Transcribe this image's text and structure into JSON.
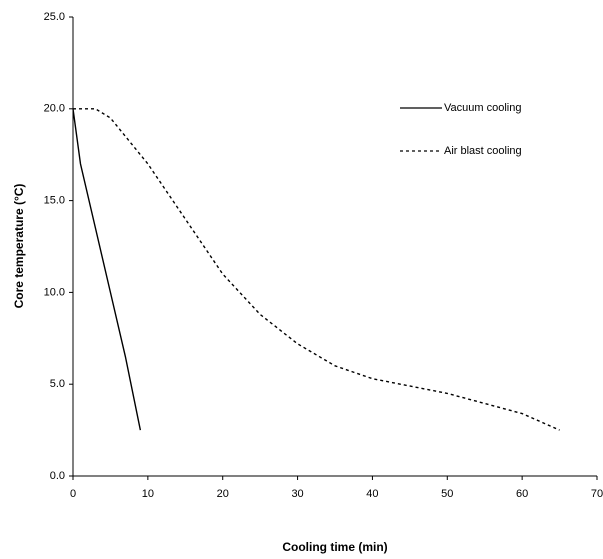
{
  "chart_data": {
    "type": "line",
    "xlabel": "Cooling time (min)",
    "ylabel": "Core temperature (°C)",
    "series": [
      {
        "name": "Vacuum cooling",
        "color": "#000000",
        "line_style": "solid",
        "x": [
          0,
          1,
          3,
          5,
          7,
          9
        ],
        "values": [
          20,
          17,
          13.5,
          10,
          6.5,
          2.5
        ]
      },
      {
        "name": "Air blast cooling",
        "color": "#000000",
        "line_style": "dashed",
        "x": [
          0,
          3,
          5,
          7,
          10,
          15,
          20,
          25,
          30,
          35,
          40,
          50,
          60,
          65
        ],
        "values": [
          20,
          20,
          19.5,
          18.5,
          17,
          14,
          11,
          8.8,
          7.2,
          6,
          5.3,
          4.5,
          3.4,
          2.5
        ]
      }
    ],
    "xlim": [
      0,
      70
    ],
    "xticks": [
      0,
      10,
      20,
      30,
      40,
      50,
      60,
      70
    ],
    "ylim": [
      0,
      25
    ],
    "yticks": [
      {
        "value": 0,
        "label": "0.0"
      },
      {
        "value": 5,
        "label": "5.0"
      },
      {
        "value": 10,
        "label": "10.0"
      },
      {
        "value": 15,
        "label": "15.0"
      },
      {
        "value": 20,
        "label": "20.0"
      },
      {
        "value": 25,
        "label": "25.0"
      }
    ],
    "grid": false,
    "legend": "upper right"
  }
}
